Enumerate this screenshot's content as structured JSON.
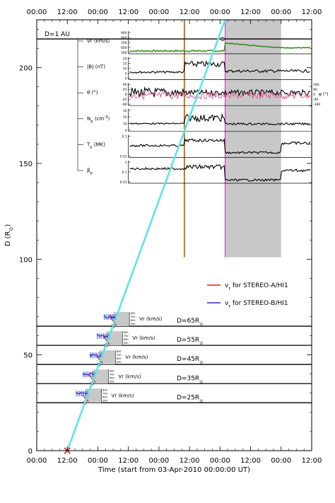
{
  "chart_data": {
    "type": "line",
    "xlabel": "Time (start from 03-Apr-2010 00:00:00 UT)",
    "ylabel": "D (R",
    "ylabel_sub": "⊙",
    "ylabel_close": ")",
    "x_unit": "hours since 03-Apr-2010 00:00 UT",
    "xlim": [
      0,
      108
    ],
    "ylim": [
      0,
      225
    ],
    "x_ticks": [
      0,
      12,
      24,
      36,
      48,
      60,
      72,
      84,
      96,
      108
    ],
    "x_tick_labels": [
      "00:00",
      "12:00",
      "00:00",
      "12:00",
      "00:00",
      "12:00",
      "00:00",
      "12:00",
      "00:00",
      "12:00"
    ],
    "y_ticks": [
      0,
      50,
      100,
      150,
      200
    ],
    "y_tick_labels": [
      "0",
      "50",
      "100",
      "150",
      "200"
    ],
    "grid": false,
    "d1au_label": "D=1 AU",
    "d1au_value": 215,
    "cme_track": {
      "name": "",
      "color": "#5ce6e6",
      "points": [
        [
          12,
          0
        ],
        [
          74,
          225
        ]
      ]
    },
    "shock_time": 58,
    "mc_start": 74,
    "mc_end": 96,
    "shock_color": "#c87820",
    "mc_start_color": "#d040c0",
    "shaded_interval_color": "#c8c8c8",
    "legend_position": "middle-right",
    "legend": [
      {
        "label": "v",
        "sub": "r",
        "rest": " for STEREO-A/HI1",
        "color": "#e02020"
      },
      {
        "label": "v",
        "sub": "r",
        "rest": " for STEREO-B/HI1",
        "color": "#2030c0"
      }
    ],
    "distance_levels": [
      {
        "label": "D=65R",
        "value": 65,
        "panel_label": "Vr (km/s)",
        "ticks": [
          "800",
          "700",
          "600",
          "500"
        ]
      },
      {
        "label": "D=55R",
        "value": 55,
        "panel_label": "Vr (km/s)",
        "ticks": [
          "800",
          "700",
          "600",
          "500"
        ]
      },
      {
        "label": "D=45R",
        "value": 45,
        "panel_label": "Vr (km/s)",
        "ticks": [
          "800",
          "700",
          "600",
          "500"
        ]
      },
      {
        "label": "D=35R",
        "value": 35,
        "panel_label": "Vr (km/s)",
        "ticks": [
          "800",
          "700",
          "600",
          "500"
        ]
      },
      {
        "label": "D=25R",
        "value": 25,
        "panel_label": "Vr (km/s)",
        "ticks": [
          "800",
          "700",
          "600",
          "500"
        ]
      }
    ],
    "distance_sub": "⊙",
    "insitu_panels": [
      {
        "label": "Vr (km/s)",
        "ticks": [
          "900",
          "800",
          "700",
          "600",
          "500"
        ]
      },
      {
        "label": "|B| (nT)",
        "ticks": [
          "20",
          "15",
          "10",
          "5",
          "0"
        ]
      },
      {
        "label": "θ (°)",
        "ticks": [
          "90",
          "45",
          "0",
          "-45",
          "-90"
        ],
        "right_ticks": [
          "180",
          "90",
          "0",
          "-90",
          "-180"
        ],
        "right_label": "φ (°)"
      },
      {
        "label": "N",
        "sub": "p",
        "rest": " (cm",
        "sup": "-3",
        "close": ")",
        "ticks": [
          "30",
          "20",
          "10",
          "0"
        ]
      },
      {
        "label": "T",
        "sub": "p",
        "rest": " (MK)",
        "ticks": [
          "0.1",
          "0.01"
        ]
      },
      {
        "label": "β",
        "sub": "p",
        "rest": "",
        "ticks": [
          "1",
          "0.1",
          "0.01"
        ]
      }
    ]
  }
}
